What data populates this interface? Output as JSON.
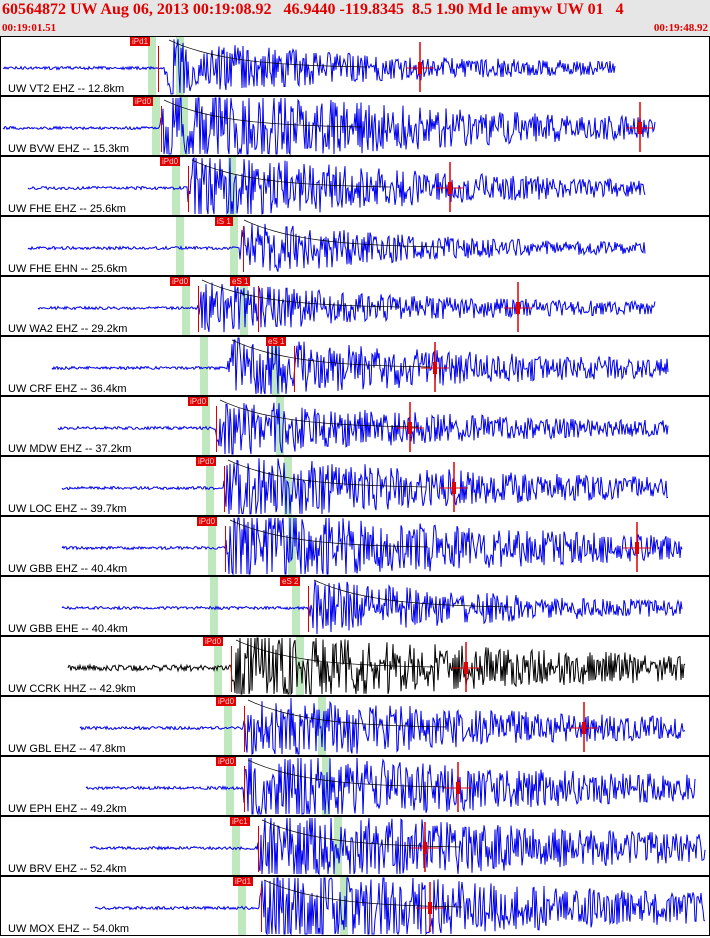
{
  "header": {
    "title": "60564872 UW Aug 06, 2013 00:19:08.92   46.9440 -119.8345  8.5 1.90 Md le amyw UW 01   4",
    "start_time": "00:19:01.51",
    "end_time": "00:19:48.92"
  },
  "colors": {
    "trace": "#0000ee",
    "trace_alt": "#000000",
    "pick": "#e00000",
    "window": "#bfe8bf",
    "header_bg": "#e6e6e6",
    "header_text": "#e00000"
  },
  "traces": [
    {
      "label": "UW VT2 EHZ -- 12.8km",
      "color": "#0000ee",
      "picks": [
        {
          "label": "iPd1"
        }
      ]
    },
    {
      "label": "UW BVW EHZ -- 15.3km",
      "color": "#0000ee",
      "picks": [
        {
          "label": "iPd0"
        }
      ]
    },
    {
      "label": "UW FHE EHZ -- 25.6km",
      "color": "#0000ee",
      "picks": [
        {
          "label": "iPd0"
        }
      ]
    },
    {
      "label": "UW FHE EHN -- 25.6km",
      "color": "#0000ee",
      "picks": [
        {
          "label": "iS 1"
        }
      ]
    },
    {
      "label": "UW WA2 EHZ -- 29.2km",
      "color": "#0000ee",
      "picks": [
        {
          "label": "iPd0"
        },
        {
          "label": "eS 1"
        }
      ]
    },
    {
      "label": "UW CRF EHZ -- 36.4km",
      "color": "#0000ee",
      "picks": [
        {
          "label": "eS 1"
        }
      ]
    },
    {
      "label": "UW MDW EHZ -- 37.2km",
      "color": "#0000ee",
      "picks": [
        {
          "label": "iPd0"
        }
      ]
    },
    {
      "label": "UW LOC EHZ -- 39.7km",
      "color": "#0000ee",
      "picks": [
        {
          "label": "iPd0"
        }
      ]
    },
    {
      "label": "UW GBB EHZ -- 40.4km",
      "color": "#0000ee",
      "picks": [
        {
          "label": "iPd0"
        }
      ]
    },
    {
      "label": "UW GBB EHE -- 40.4km",
      "color": "#0000ee",
      "picks": [
        {
          "label": "eS 2"
        }
      ]
    },
    {
      "label": "UW CCRK HHZ -- 42.9km",
      "color": "#000000",
      "picks": [
        {
          "label": "iPd0"
        }
      ]
    },
    {
      "label": "UW GBL EHZ -- 47.8km",
      "color": "#0000ee",
      "picks": [
        {
          "label": "iPd0"
        }
      ]
    },
    {
      "label": "UW EPH EHZ -- 49.2km",
      "color": "#0000ee",
      "picks": [
        {
          "label": "iPd0"
        }
      ]
    },
    {
      "label": "UW BRV EHZ -- 52.4km",
      "color": "#0000ee",
      "picks": [
        {
          "label": "iPc1"
        }
      ]
    },
    {
      "label": "UW MOX EHZ -- 54.0km",
      "color": "#0000ee",
      "picks": [
        {
          "label": "iPd1"
        }
      ]
    }
  ]
}
